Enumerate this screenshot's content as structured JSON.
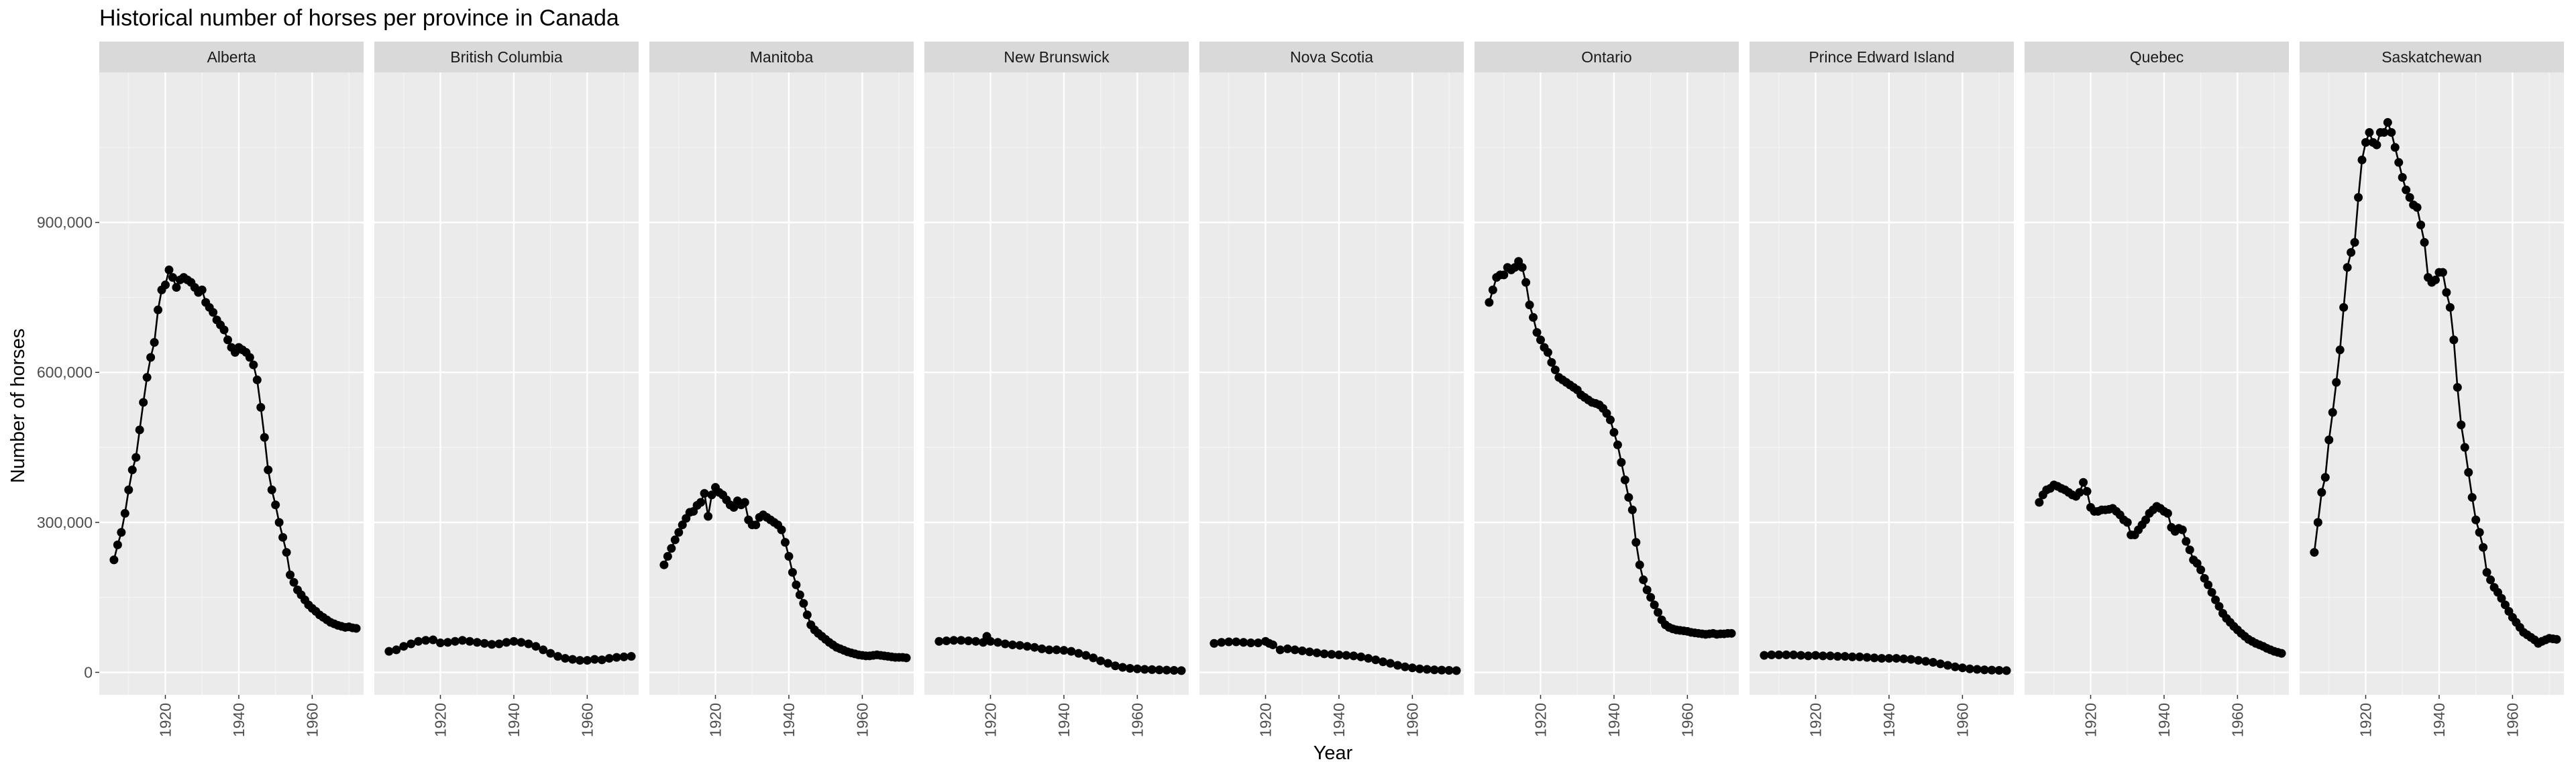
{
  "chart_data": {
    "type": "line",
    "title": "Historical number of horses per province in Canada",
    "xlabel": "Year",
    "ylabel": "Number of horses",
    "xlim": [
      1902,
      1974
    ],
    "ylim": [
      -45000,
      1200000
    ],
    "x_ticks": [
      1920,
      1940,
      1960
    ],
    "x_tick_labels": [
      "1920",
      "1940",
      "1960"
    ],
    "y_ticks": [
      0,
      300000,
      600000,
      900000
    ],
    "y_tick_labels": [
      "0",
      "300,000",
      "600,000",
      "900,000"
    ],
    "grid": true,
    "facets": [
      {
        "name": "Alberta",
        "x": [
          1906,
          1907,
          1908,
          1909,
          1910,
          1911,
          1912,
          1913,
          1914,
          1915,
          1916,
          1917,
          1918,
          1919,
          1920,
          1921,
          1922,
          1923,
          1924,
          1925,
          1926,
          1927,
          1928,
          1929,
          1930,
          1931,
          1932,
          1933,
          1934,
          1935,
          1936,
          1937,
          1938,
          1939,
          1940,
          1941,
          1942,
          1943,
          1944,
          1945,
          1946,
          1947,
          1948,
          1949,
          1950,
          1951,
          1952,
          1953,
          1954,
          1955,
          1956,
          1957,
          1958,
          1959,
          1960,
          1961,
          1962,
          1963,
          1964,
          1965,
          1966,
          1967,
          1968,
          1969,
          1970,
          1971,
          1972
        ],
        "y": [
          225000,
          255000,
          280000,
          318000,
          365000,
          405000,
          430000,
          485000,
          540000,
          590000,
          630000,
          660000,
          725000,
          765000,
          775000,
          805000,
          790000,
          770000,
          785000,
          790000,
          785000,
          780000,
          770000,
          760000,
          765000,
          740000,
          730000,
          720000,
          705000,
          695000,
          685000,
          665000,
          650000,
          640000,
          650000,
          645000,
          640000,
          630000,
          615000,
          585000,
          530000,
          470000,
          405000,
          365000,
          335000,
          300000,
          270000,
          240000,
          195000,
          180000,
          165000,
          155000,
          145000,
          135000,
          128000,
          122000,
          115000,
          110000,
          105000,
          100000,
          97000,
          94000,
          92000,
          90000,
          91000,
          89000,
          88000
        ]
      },
      {
        "name": "British Columbia",
        "x": [
          1906,
          1908,
          1910,
          1912,
          1914,
          1916,
          1918,
          1920,
          1922,
          1924,
          1926,
          1928,
          1930,
          1932,
          1934,
          1936,
          1938,
          1940,
          1942,
          1944,
          1946,
          1948,
          1950,
          1952,
          1954,
          1956,
          1958,
          1960,
          1962,
          1964,
          1966,
          1968,
          1970,
          1972
        ],
        "y": [
          42000,
          45000,
          52000,
          57000,
          62000,
          64000,
          65000,
          59000,
          60000,
          62000,
          64000,
          62000,
          60000,
          58000,
          56000,
          57000,
          60000,
          62000,
          60000,
          57000,
          52000,
          45000,
          38000,
          32000,
          28000,
          26000,
          24000,
          24000,
          26000,
          25000,
          28000,
          30000,
          31000,
          32000
        ]
      },
      {
        "name": "Manitoba",
        "x": [
          1906,
          1907,
          1908,
          1909,
          1910,
          1911,
          1912,
          1913,
          1914,
          1915,
          1916,
          1917,
          1918,
          1919,
          1920,
          1921,
          1922,
          1923,
          1924,
          1925,
          1926,
          1927,
          1928,
          1929,
          1930,
          1931,
          1932,
          1933,
          1934,
          1935,
          1936,
          1937,
          1938,
          1939,
          1940,
          1941,
          1942,
          1943,
          1944,
          1945,
          1946,
          1947,
          1948,
          1949,
          1950,
          1951,
          1952,
          1953,
          1954,
          1955,
          1956,
          1957,
          1958,
          1959,
          1960,
          1961,
          1962,
          1963,
          1964,
          1965,
          1966,
          1967,
          1968,
          1969,
          1970,
          1971,
          1972
        ],
        "y": [
          215000,
          232000,
          248000,
          265000,
          280000,
          295000,
          308000,
          320000,
          322000,
          334000,
          340000,
          358000,
          312000,
          355000,
          370000,
          360000,
          355000,
          345000,
          335000,
          330000,
          343000,
          335000,
          340000,
          305000,
          295000,
          295000,
          310000,
          315000,
          310000,
          305000,
          300000,
          295000,
          285000,
          260000,
          232000,
          200000,
          175000,
          155000,
          138000,
          115000,
          95000,
          85000,
          78000,
          72000,
          66000,
          60000,
          55000,
          50000,
          47000,
          44000,
          41000,
          39000,
          37000,
          35000,
          34000,
          33000,
          33000,
          34000,
          35000,
          34000,
          33000,
          32000,
          31000,
          30000,
          30000,
          30000,
          29000
        ]
      },
      {
        "name": "New Brunswick",
        "x": [
          1906,
          1908,
          1910,
          1912,
          1914,
          1916,
          1918,
          1919,
          1920,
          1922,
          1924,
          1926,
          1928,
          1930,
          1932,
          1934,
          1936,
          1938,
          1940,
          1942,
          1944,
          1946,
          1948,
          1950,
          1952,
          1954,
          1956,
          1958,
          1960,
          1962,
          1964,
          1966,
          1968,
          1970,
          1972
        ],
        "y": [
          62000,
          63000,
          64000,
          64000,
          63000,
          62000,
          60000,
          72000,
          62000,
          60000,
          57000,
          55000,
          54000,
          52000,
          50000,
          47000,
          45000,
          45000,
          44000,
          42000,
          38000,
          34000,
          29000,
          23000,
          18000,
          13000,
          10000,
          8000,
          7000,
          6000,
          5500,
          5000,
          4500,
          4000,
          3500
        ]
      },
      {
        "name": "Nova Scotia",
        "x": [
          1906,
          1908,
          1910,
          1912,
          1914,
          1916,
          1918,
          1920,
          1921,
          1922,
          1924,
          1926,
          1928,
          1930,
          1932,
          1934,
          1936,
          1938,
          1940,
          1942,
          1944,
          1946,
          1948,
          1950,
          1952,
          1954,
          1956,
          1958,
          1960,
          1962,
          1964,
          1966,
          1968,
          1970,
          1972
        ],
        "y": [
          58000,
          60000,
          61000,
          61000,
          60000,
          59000,
          59000,
          62000,
          58000,
          55000,
          45000,
          47000,
          45000,
          43000,
          41000,
          39000,
          37000,
          36000,
          35000,
          34000,
          33000,
          31000,
          28000,
          25000,
          21000,
          18000,
          14000,
          11000,
          9000,
          7000,
          6000,
          5000,
          4500,
          4000,
          3500
        ]
      },
      {
        "name": "Ontario",
        "x": [
          1906,
          1907,
          1908,
          1909,
          1910,
          1911,
          1912,
          1913,
          1914,
          1915,
          1916,
          1917,
          1918,
          1919,
          1920,
          1921,
          1922,
          1923,
          1924,
          1925,
          1926,
          1927,
          1928,
          1929,
          1930,
          1931,
          1932,
          1933,
          1934,
          1935,
          1936,
          1937,
          1938,
          1939,
          1940,
          1941,
          1942,
          1943,
          1944,
          1945,
          1946,
          1947,
          1948,
          1949,
          1950,
          1951,
          1952,
          1953,
          1954,
          1955,
          1956,
          1957,
          1958,
          1959,
          1960,
          1961,
          1962,
          1963,
          1964,
          1965,
          1966,
          1967,
          1968,
          1969,
          1970,
          1971,
          1972
        ],
        "y": [
          740000,
          765000,
          790000,
          795000,
          795000,
          810000,
          805000,
          810000,
          822000,
          810000,
          780000,
          735000,
          710000,
          680000,
          665000,
          650000,
          640000,
          620000,
          605000,
          590000,
          585000,
          580000,
          575000,
          570000,
          565000,
          555000,
          550000,
          545000,
          540000,
          538000,
          535000,
          528000,
          518000,
          505000,
          480000,
          455000,
          420000,
          385000,
          350000,
          325000,
          260000,
          215000,
          185000,
          165000,
          150000,
          135000,
          120000,
          105000,
          95000,
          90000,
          87000,
          85000,
          84000,
          83000,
          82000,
          80000,
          79000,
          78000,
          77000,
          76000,
          77000,
          78000,
          76000,
          77000,
          77000,
          78000,
          78000
        ]
      },
      {
        "name": "Prince Edward Island",
        "x": [
          1906,
          1908,
          1910,
          1912,
          1914,
          1916,
          1918,
          1920,
          1922,
          1924,
          1926,
          1928,
          1930,
          1932,
          1934,
          1936,
          1938,
          1940,
          1942,
          1944,
          1946,
          1948,
          1950,
          1952,
          1954,
          1956,
          1958,
          1960,
          1962,
          1964,
          1966,
          1968,
          1970,
          1972
        ],
        "y": [
          34000,
          35000,
          35000,
          35000,
          35000,
          34000,
          33000,
          34000,
          33000,
          33000,
          32000,
          32000,
          31000,
          31000,
          30000,
          29000,
          28000,
          28000,
          28000,
          27000,
          26000,
          24000,
          22000,
          20000,
          17000,
          14000,
          11000,
          9000,
          7000,
          6000,
          5000,
          4500,
          4000,
          3500
        ]
      },
      {
        "name": "Quebec",
        "x": [
          1906,
          1907,
          1908,
          1909,
          1910,
          1911,
          1912,
          1913,
          1914,
          1915,
          1916,
          1917,
          1918,
          1919,
          1920,
          1921,
          1922,
          1923,
          1924,
          1925,
          1926,
          1927,
          1928,
          1929,
          1930,
          1931,
          1932,
          1933,
          1934,
          1935,
          1936,
          1937,
          1938,
          1939,
          1940,
          1941,
          1942,
          1943,
          1944,
          1945,
          1946,
          1947,
          1948,
          1949,
          1950,
          1951,
          1952,
          1953,
          1954,
          1955,
          1956,
          1957,
          1958,
          1959,
          1960,
          1961,
          1962,
          1963,
          1964,
          1965,
          1966,
          1967,
          1968,
          1969,
          1970,
          1971,
          1972
        ],
        "y": [
          340000,
          355000,
          365000,
          368000,
          375000,
          372000,
          368000,
          365000,
          360000,
          355000,
          352000,
          360000,
          380000,
          362000,
          330000,
          322000,
          322000,
          325000,
          325000,
          326000,
          328000,
          322000,
          315000,
          305000,
          300000,
          275000,
          275000,
          285000,
          295000,
          305000,
          318000,
          325000,
          332000,
          328000,
          322000,
          318000,
          290000,
          282000,
          288000,
          285000,
          262000,
          245000,
          225000,
          218000,
          205000,
          188000,
          175000,
          160000,
          145000,
          132000,
          118000,
          108000,
          100000,
          92000,
          85000,
          78000,
          72000,
          66000,
          62000,
          58000,
          55000,
          52000,
          48000,
          45000,
          42000,
          40000,
          38000
        ]
      },
      {
        "name": "Saskatchewan",
        "x": [
          1906,
          1907,
          1908,
          1909,
          1910,
          1911,
          1912,
          1913,
          1914,
          1915,
          1916,
          1917,
          1918,
          1919,
          1920,
          1921,
          1922,
          1923,
          1924,
          1925,
          1926,
          1927,
          1928,
          1929,
          1930,
          1931,
          1932,
          1933,
          1934,
          1935,
          1936,
          1937,
          1938,
          1939,
          1940,
          1941,
          1942,
          1943,
          1944,
          1945,
          1946,
          1947,
          1948,
          1949,
          1950,
          1951,
          1952,
          1953,
          1954,
          1955,
          1956,
          1957,
          1958,
          1959,
          1960,
          1961,
          1962,
          1963,
          1964,
          1965,
          1966,
          1967,
          1968,
          1969,
          1970,
          1971,
          1972
        ],
        "y": [
          240000,
          300000,
          360000,
          390000,
          465000,
          520000,
          580000,
          645000,
          730000,
          810000,
          840000,
          860000,
          950000,
          1025000,
          1060000,
          1080000,
          1060000,
          1055000,
          1080000,
          1080000,
          1100000,
          1080000,
          1050000,
          1020000,
          990000,
          965000,
          950000,
          935000,
          930000,
          895000,
          860000,
          790000,
          780000,
          785000,
          800000,
          800000,
          760000,
          730000,
          665000,
          570000,
          495000,
          450000,
          400000,
          350000,
          305000,
          280000,
          250000,
          200000,
          185000,
          170000,
          160000,
          148000,
          135000,
          122000,
          110000,
          100000,
          90000,
          80000,
          75000,
          70000,
          65000,
          58000,
          62000,
          65000,
          68000,
          67000,
          66000
        ]
      }
    ]
  }
}
